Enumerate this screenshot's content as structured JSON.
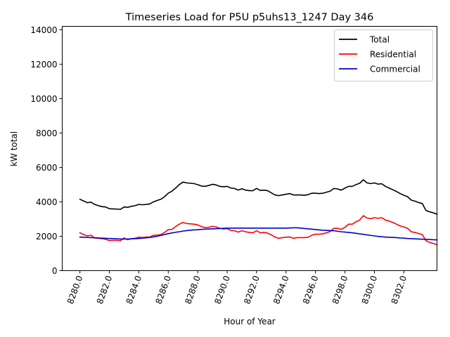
{
  "chart_data": {
    "type": "line",
    "title": "Timeseries Load for P5U p5uhs13_1247  Day 346",
    "xlabel": "Hour of Year",
    "ylabel": "kW total",
    "xlim": [
      8278.8,
      8304.25
    ],
    "ylim": [
      0,
      14200
    ],
    "x_ticks": [
      8280,
      8282,
      8284,
      8286,
      8288,
      8290,
      8292,
      8294,
      8296,
      8298,
      8300,
      8302
    ],
    "x_tick_labels": [
      "8280.0",
      "8282.0",
      "8284.0",
      "8286.0",
      "8288.0",
      "8290.0",
      "8292.0",
      "8294.0",
      "8296.0",
      "8298.0",
      "8300.0",
      "8302.0"
    ],
    "y_ticks": [
      0,
      2000,
      4000,
      6000,
      8000,
      10000,
      12000,
      14000
    ],
    "y_tick_labels": [
      "0",
      "2000",
      "4000",
      "6000",
      "8000",
      "10000",
      "12000",
      "14000"
    ],
    "legend_position": "top-right",
    "x_start": 8280,
    "x_step": 0.25,
    "series": [
      {
        "name": "Total",
        "color": "#000000",
        "values": [
          4150,
          4050,
          3950,
          3980,
          3850,
          3780,
          3720,
          3700,
          3600,
          3590,
          3580,
          3560,
          3700,
          3680,
          3740,
          3780,
          3850,
          3830,
          3850,
          3880,
          4000,
          4080,
          4150,
          4300,
          4500,
          4620,
          4800,
          5000,
          5150,
          5100,
          5080,
          5060,
          5000,
          4920,
          4900,
          4950,
          5020,
          4980,
          4900,
          4880,
          4900,
          4800,
          4780,
          4680,
          4760,
          4680,
          4650,
          4650,
          4780,
          4660,
          4680,
          4650,
          4520,
          4400,
          4360,
          4400,
          4440,
          4480,
          4400,
          4400,
          4400,
          4380,
          4420,
          4500,
          4500,
          4480,
          4500,
          4560,
          4620,
          4780,
          4750,
          4680,
          4800,
          4900,
          4900,
          5000,
          5080,
          5280,
          5100,
          5060,
          5100,
          5030,
          5050,
          4900,
          4800,
          4700,
          4600,
          4480,
          4380,
          4300,
          4100,
          4040,
          3960,
          3900,
          3500,
          3420,
          3360,
          3280
        ]
      },
      {
        "name": "Residential",
        "color": "#ff0000",
        "values": [
          2200,
          2100,
          2020,
          2060,
          1900,
          1880,
          1860,
          1820,
          1750,
          1760,
          1760,
          1740,
          1900,
          1800,
          1860,
          1880,
          1950,
          1920,
          1950,
          1950,
          2060,
          2060,
          2100,
          2220,
          2380,
          2400,
          2560,
          2700,
          2800,
          2740,
          2720,
          2700,
          2660,
          2560,
          2500,
          2520,
          2580,
          2540,
          2460,
          2420,
          2440,
          2340,
          2320,
          2240,
          2320,
          2260,
          2220,
          2200,
          2320,
          2200,
          2220,
          2180,
          2080,
          1950,
          1880,
          1920,
          1940,
          1960,
          1880,
          1920,
          1920,
          1920,
          1940,
          2060,
          2120,
          2120,
          2140,
          2200,
          2280,
          2460,
          2460,
          2400,
          2520,
          2700,
          2700,
          2840,
          2940,
          3200,
          3060,
          3020,
          3080,
          3040,
          3080,
          2940,
          2880,
          2800,
          2700,
          2600,
          2540,
          2460,
          2260,
          2220,
          2160,
          2100,
          1740,
          1640,
          1580,
          1500
        ]
      },
      {
        "name": "Commercial",
        "color": "#0000cc",
        "values": [
          1950,
          1940,
          1930,
          1920,
          1910,
          1900,
          1890,
          1880,
          1870,
          1860,
          1850,
          1840,
          1840,
          1840,
          1850,
          1860,
          1870,
          1890,
          1910,
          1930,
          1960,
          2000,
          2050,
          2100,
          2150,
          2190,
          2230,
          2260,
          2300,
          2330,
          2350,
          2370,
          2380,
          2400,
          2410,
          2420,
          2430,
          2440,
          2450,
          2460,
          2470,
          2470,
          2470,
          2470,
          2470,
          2470,
          2470,
          2470,
          2470,
          2470,
          2470,
          2470,
          2470,
          2470,
          2470,
          2470,
          2470,
          2480,
          2490,
          2490,
          2470,
          2450,
          2430,
          2410,
          2390,
          2370,
          2350,
          2340,
          2330,
          2320,
          2290,
          2260,
          2240,
          2220,
          2200,
          2170,
          2140,
          2110,
          2080,
          2050,
          2020,
          1990,
          1970,
          1950,
          1940,
          1930,
          1920,
          1900,
          1890,
          1870,
          1860,
          1850,
          1840,
          1830,
          1820,
          1810,
          1800,
          1790
        ]
      }
    ]
  }
}
